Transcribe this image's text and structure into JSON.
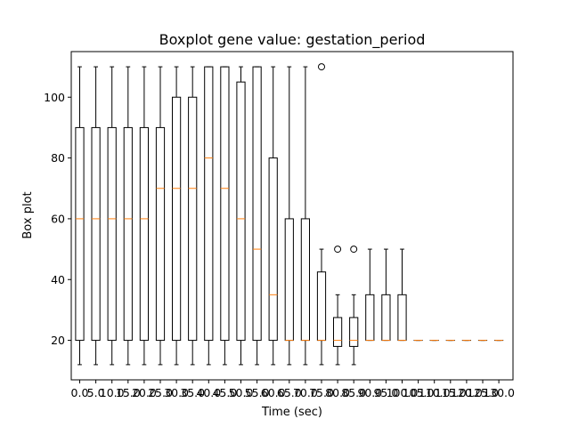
{
  "chart_data": {
    "type": "box",
    "title": "Boxplot gene value: gestation_period",
    "xlabel": "Time (sec)",
    "ylabel": "Box plot",
    "ylim": [
      7,
      115
    ],
    "yticks": [
      20,
      40,
      60,
      80,
      100
    ],
    "grid": false,
    "colors": {
      "box": "#000000",
      "median": "#ff7f0e",
      "outlier": "#000000"
    },
    "categories": [
      "0.0",
      "5.0",
      "10.0",
      "15.0",
      "20.0",
      "25.0",
      "30.0",
      "35.0",
      "40.0",
      "45.0",
      "50.0",
      "55.0",
      "60.0",
      "65.0",
      "70.0",
      "75.0",
      "80.0",
      "85.0",
      "90.0",
      "95.0",
      "100.0",
      "105.0",
      "110.0",
      "115.0",
      "120.0",
      "125.0",
      "130.0"
    ],
    "boxes": [
      {
        "whislo": 12,
        "q1": 20,
        "med": 60,
        "q3": 90,
        "whishi": 110,
        "fliers": []
      },
      {
        "whislo": 12,
        "q1": 20,
        "med": 60,
        "q3": 90,
        "whishi": 110,
        "fliers": []
      },
      {
        "whislo": 12,
        "q1": 20,
        "med": 60,
        "q3": 90,
        "whishi": 110,
        "fliers": []
      },
      {
        "whislo": 12,
        "q1": 20,
        "med": 60,
        "q3": 90,
        "whishi": 110,
        "fliers": []
      },
      {
        "whislo": 12,
        "q1": 20,
        "med": 60,
        "q3": 90,
        "whishi": 110,
        "fliers": []
      },
      {
        "whislo": 12,
        "q1": 20,
        "med": 70,
        "q3": 90,
        "whishi": 110,
        "fliers": []
      },
      {
        "whislo": 12,
        "q1": 20,
        "med": 70,
        "q3": 100,
        "whishi": 110,
        "fliers": []
      },
      {
        "whislo": 12,
        "q1": 20,
        "med": 70,
        "q3": 100,
        "whishi": 110,
        "fliers": []
      },
      {
        "whislo": 12,
        "q1": 20,
        "med": 80,
        "q3": 110,
        "whishi": 110,
        "fliers": []
      },
      {
        "whislo": 12,
        "q1": 20,
        "med": 70,
        "q3": 110,
        "whishi": 110,
        "fliers": []
      },
      {
        "whislo": 12,
        "q1": 20,
        "med": 60,
        "q3": 105,
        "whishi": 110,
        "fliers": []
      },
      {
        "whislo": 12,
        "q1": 20,
        "med": 50,
        "q3": 110,
        "whishi": 110,
        "fliers": []
      },
      {
        "whislo": 12,
        "q1": 20,
        "med": 35,
        "q3": 80,
        "whishi": 110,
        "fliers": []
      },
      {
        "whislo": 12,
        "q1": 20,
        "med": 20,
        "q3": 60,
        "whishi": 110,
        "fliers": []
      },
      {
        "whislo": 12,
        "q1": 20,
        "med": 20,
        "q3": 60,
        "whishi": 110,
        "fliers": []
      },
      {
        "whislo": 12,
        "q1": 20,
        "med": 20,
        "q3": 42.5,
        "whishi": 50,
        "fliers": [
          110
        ]
      },
      {
        "whislo": 12,
        "q1": 18,
        "med": 20,
        "q3": 27.5,
        "whishi": 35,
        "fliers": [
          50
        ]
      },
      {
        "whislo": 12,
        "q1": 18,
        "med": 20,
        "q3": 27.5,
        "whishi": 35,
        "fliers": [
          50
        ]
      },
      {
        "whislo": 20,
        "q1": 20,
        "med": 20,
        "q3": 35,
        "whishi": 50,
        "fliers": []
      },
      {
        "whislo": 20,
        "q1": 20,
        "med": 20,
        "q3": 35,
        "whishi": 50,
        "fliers": []
      },
      {
        "whislo": 20,
        "q1": 20,
        "med": 20,
        "q3": 35,
        "whishi": 50,
        "fliers": []
      },
      {
        "whislo": 20,
        "q1": 20,
        "med": 20,
        "q3": 20,
        "whishi": 20,
        "fliers": []
      },
      {
        "whislo": 20,
        "q1": 20,
        "med": 20,
        "q3": 20,
        "whishi": 20,
        "fliers": []
      },
      {
        "whislo": 20,
        "q1": 20,
        "med": 20,
        "q3": 20,
        "whishi": 20,
        "fliers": []
      },
      {
        "whislo": 20,
        "q1": 20,
        "med": 20,
        "q3": 20,
        "whishi": 20,
        "fliers": []
      },
      {
        "whislo": 20,
        "q1": 20,
        "med": 20,
        "q3": 20,
        "whishi": 20,
        "fliers": []
      },
      {
        "whislo": 20,
        "q1": 20,
        "med": 20,
        "q3": 20,
        "whishi": 20,
        "fliers": []
      }
    ]
  }
}
